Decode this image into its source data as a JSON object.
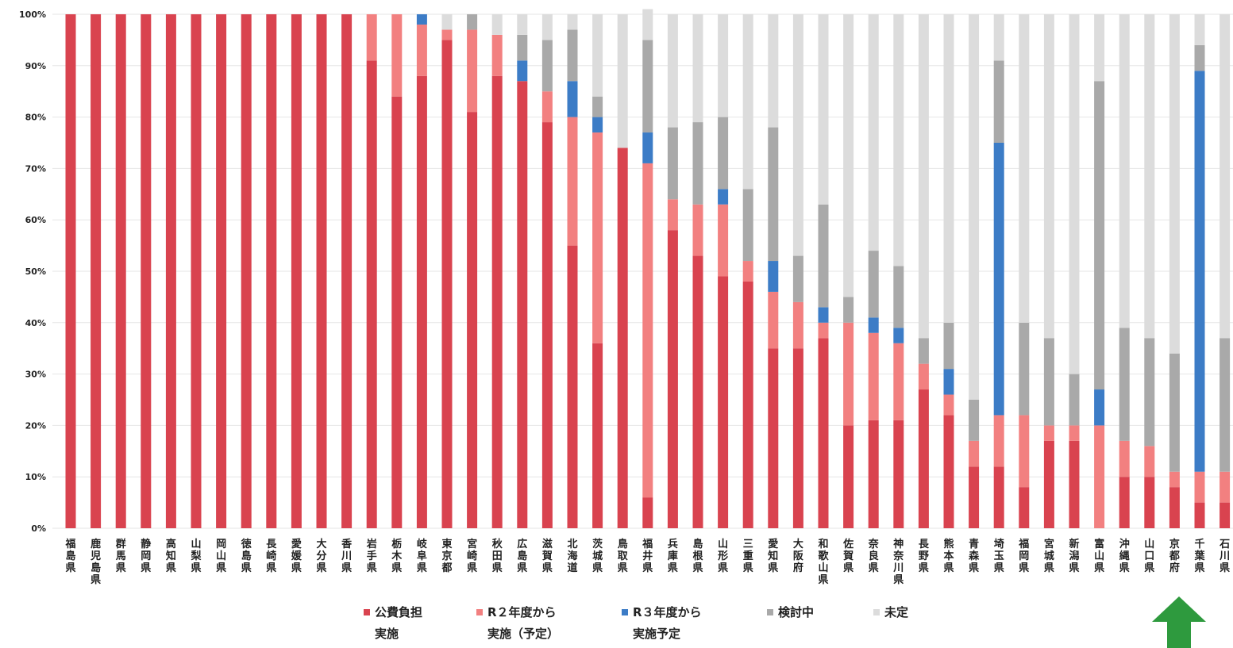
{
  "chart_data": {
    "type": "bar",
    "stacked": true,
    "title": "",
    "xlabel": "",
    "ylabel": "",
    "ylim": [
      0,
      100
    ],
    "y_ticks": [
      "0%",
      "10%",
      "20%",
      "30%",
      "40%",
      "50%",
      "60%",
      "70%",
      "80%",
      "90%",
      "100%"
    ],
    "grid": true,
    "legend_position": "bottom",
    "categories": [
      "福島県",
      "鹿児島県",
      "群馬県",
      "静岡県",
      "高知県",
      "山梨県",
      "岡山県",
      "徳島県",
      "長崎県",
      "愛媛県",
      "大分県",
      "香川県",
      "岩手県",
      "栃木県",
      "岐阜県",
      "東京都",
      "宮崎県",
      "秋田県",
      "広島県",
      "滋賀県",
      "北海道",
      "茨城県",
      "鳥取県",
      "福井県",
      "兵庫県",
      "島根県",
      "山形県",
      "三重県",
      "愛知県",
      "大阪府",
      "和歌山県",
      "佐賀県",
      "奈良県",
      "神奈川県",
      "長野県",
      "熊本県",
      "青森県",
      "埼玉県",
      "福岡県",
      "宮城県",
      "新潟県",
      "富山県",
      "沖縄県",
      "山口県",
      "京都府",
      "千葉県",
      "石川県"
    ],
    "series": [
      {
        "name": "公費負担実施",
        "legend_lines": [
          "公費負担",
          "実施"
        ],
        "color": "#d9434f",
        "values": [
          100,
          100,
          100,
          100,
          100,
          100,
          100,
          100,
          100,
          100,
          100,
          100,
          91,
          84,
          88,
          95,
          81,
          88,
          87,
          79,
          55,
          36,
          74,
          6,
          58,
          53,
          49,
          48,
          35,
          35,
          37,
          20,
          21,
          21,
          27,
          22,
          12,
          12,
          8,
          17,
          17,
          0,
          10,
          10,
          8,
          5,
          5
        ]
      },
      {
        "name": "R２年度から実施（予定）",
        "legend_lines": [
          "R２年度から",
          "実施（予定）"
        ],
        "color": "#f28080",
        "values": [
          0,
          0,
          0,
          0,
          0,
          0,
          0,
          0,
          0,
          0,
          0,
          0,
          9,
          16,
          10,
          2,
          16,
          8,
          0,
          6,
          25,
          41,
          0,
          65,
          6,
          10,
          14,
          4,
          11,
          9,
          3,
          20,
          17,
          15,
          5,
          4,
          5,
          10,
          14,
          3,
          3,
          20,
          7,
          6,
          3,
          6,
          6
        ]
      },
      {
        "name": "R３年度から実施予定",
        "legend_lines": [
          "R３年度から",
          "実施予定"
        ],
        "color": "#3c7cc6",
        "values": [
          0,
          0,
          0,
          0,
          0,
          0,
          0,
          0,
          0,
          0,
          0,
          0,
          0,
          0,
          2,
          0,
          0,
          0,
          4,
          0,
          7,
          3,
          0,
          6,
          0,
          0,
          3,
          0,
          6,
          0,
          3,
          0,
          3,
          3,
          0,
          5,
          0,
          53,
          0,
          0,
          0,
          7,
          0,
          0,
          0,
          78,
          0
        ]
      },
      {
        "name": "検討中",
        "legend_lines": [
          "検討中"
        ],
        "color": "#a9a9a9",
        "values": [
          0,
          0,
          0,
          0,
          0,
          0,
          0,
          0,
          0,
          0,
          0,
          0,
          0,
          0,
          0,
          0,
          3,
          0,
          5,
          10,
          10,
          4,
          0,
          18,
          14,
          16,
          14,
          14,
          26,
          9,
          20,
          5,
          13,
          12,
          5,
          9,
          8,
          16,
          18,
          17,
          10,
          60,
          22,
          21,
          23,
          5,
          26
        ]
      },
      {
        "name": "未定",
        "legend_lines": [
          "未定"
        ],
        "color": "#dcdcdc",
        "values": [
          0,
          0,
          0,
          0,
          0,
          0,
          0,
          0,
          0,
          0,
          0,
          0,
          0,
          0,
          0,
          3,
          0,
          4,
          4,
          5,
          3,
          16,
          26,
          6,
          22,
          21,
          20,
          34,
          22,
          47,
          37,
          55,
          46,
          49,
          63,
          60,
          75,
          9,
          60,
          63,
          70,
          13,
          61,
          63,
          66,
          6,
          63
        ]
      }
    ]
  }
}
